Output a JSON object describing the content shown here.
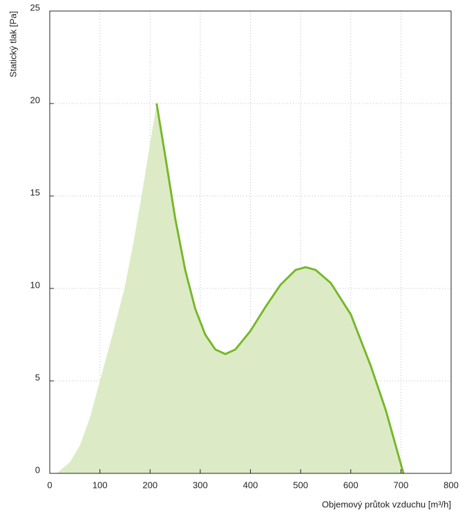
{
  "chart_data": {
    "type": "line",
    "x_label": "Objemový průtok vzduchu [m³/h]",
    "y_label": "Statický tlak [Pa]",
    "xlim": [
      0,
      800
    ],
    "xticks": [
      0,
      100,
      200,
      300,
      400,
      500,
      600,
      700,
      800
    ],
    "ylim": [
      0,
      25
    ],
    "yticks": [
      0,
      5,
      10,
      15,
      20,
      25
    ],
    "grid": true,
    "series": [
      {
        "kind": "area",
        "color": "#dcebc5",
        "x": [
          14,
          40,
          60,
          80,
          100,
          125,
          149,
          167,
          183,
          198,
          213,
          230,
          250,
          270,
          290,
          310,
          330,
          350,
          370,
          400,
          430,
          460,
          490,
          510,
          530,
          560,
          600,
          640,
          670,
          705
        ],
        "values": [
          0,
          0.6,
          1.5,
          3.0,
          5,
          7.5,
          10,
          12.5,
          15,
          17.5,
          20,
          17.2,
          13.8,
          11.0,
          8.9,
          7.5,
          6.7,
          6.45,
          6.7,
          7.7,
          9.0,
          10.2,
          11.0,
          11.15,
          11.0,
          10.3,
          8.6,
          5.8,
          3.4,
          0
        ]
      },
      {
        "kind": "line",
        "color": "#76b82a",
        "x": [
          213,
          230,
          250,
          270,
          290,
          310,
          330,
          350,
          370,
          400,
          430,
          460,
          490,
          510,
          530,
          560,
          600,
          640,
          670,
          705
        ],
        "values": [
          20,
          17.2,
          13.8,
          11.0,
          8.9,
          7.5,
          6.7,
          6.45,
          6.7,
          7.7,
          9.0,
          10.2,
          11.0,
          11.15,
          11.0,
          10.3,
          8.6,
          5.8,
          3.4,
          0
        ]
      }
    ]
  }
}
